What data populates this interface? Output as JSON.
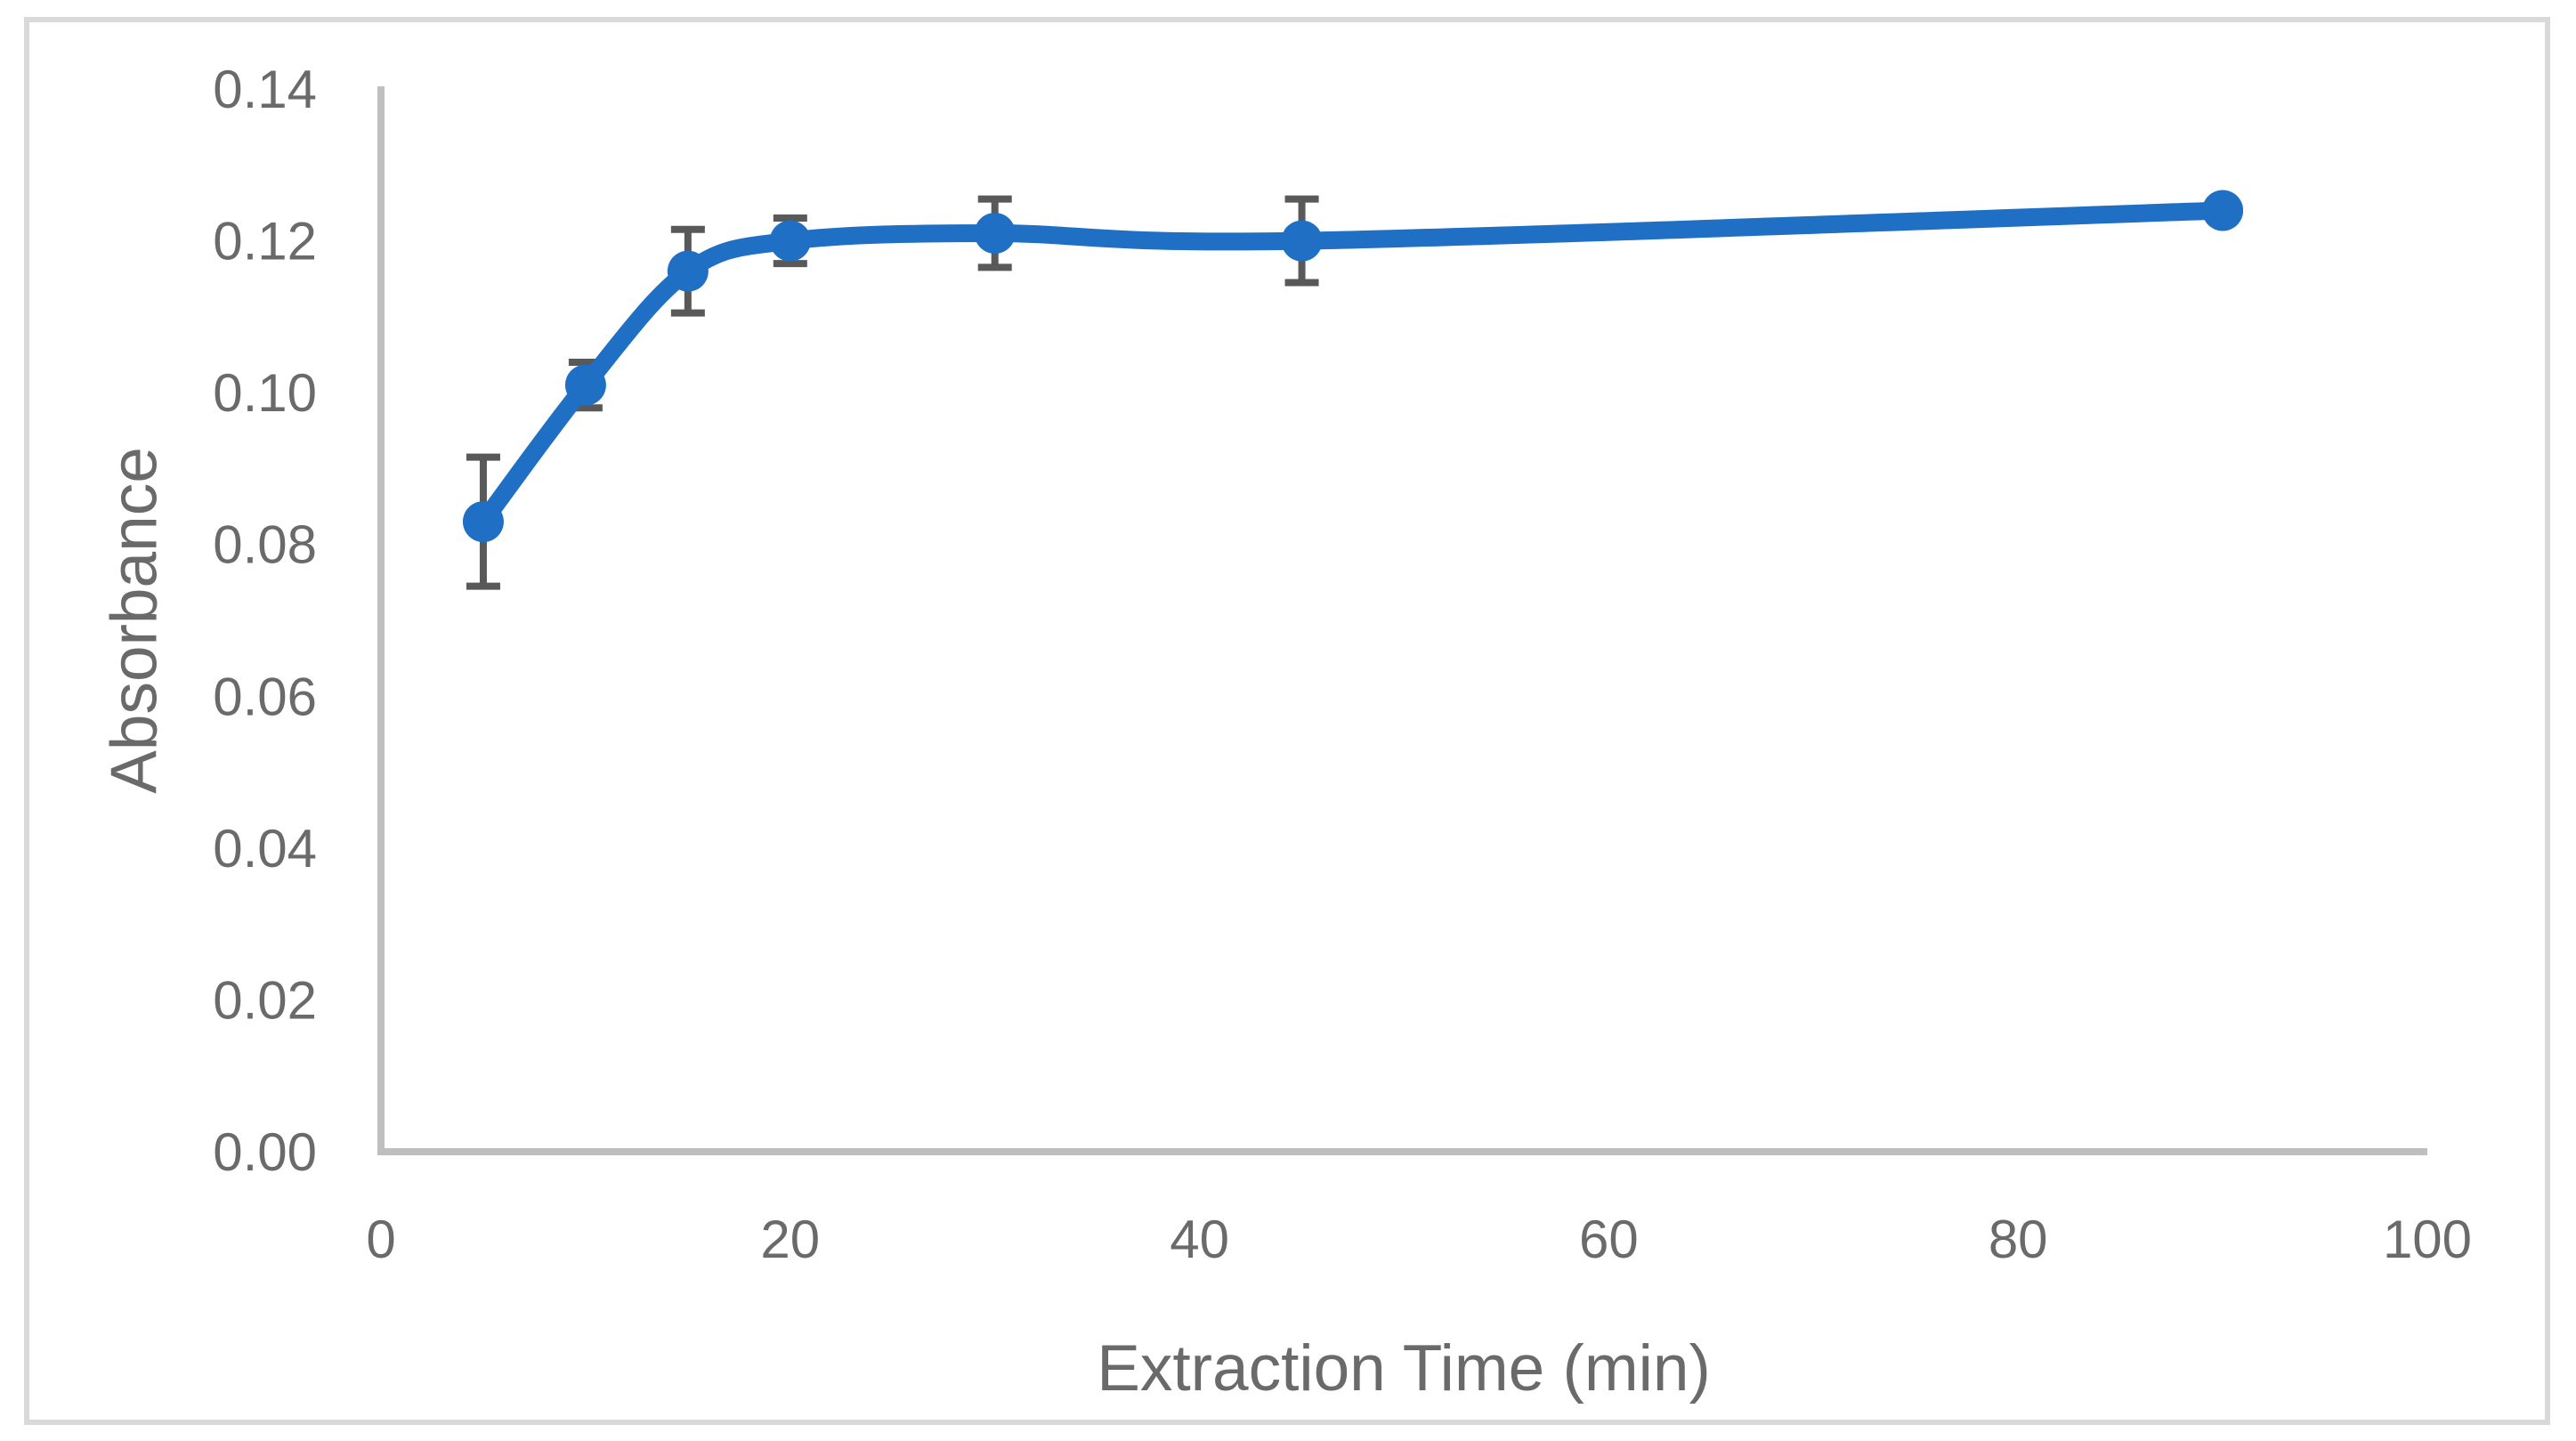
{
  "chart_data": {
    "type": "line",
    "title": "",
    "xlabel": "Extraction Time (min)",
    "ylabel": "Absorbance",
    "x": [
      5,
      10,
      15,
      20,
      30,
      45,
      90
    ],
    "y": [
      0.083,
      0.101,
      0.116,
      0.12,
      0.121,
      0.12,
      0.124
    ],
    "yerr": [
      0.0085,
      0.003,
      0.0055,
      0.003,
      0.0045,
      0.0055,
      0
    ],
    "xlim": [
      0,
      100
    ],
    "ylim": [
      0,
      0.14
    ],
    "xticks": [
      0,
      20,
      40,
      60,
      80,
      100
    ],
    "yticks": [
      0,
      0.02,
      0.04,
      0.06,
      0.08,
      0.1,
      0.12,
      0.14
    ],
    "ytick_decimals": 2,
    "grid": false,
    "legend": "none",
    "smooth": true,
    "marker": "circle",
    "colors": {
      "series": "#1F6FC4",
      "error_bar": "#595959",
      "axis_line": "#BFBFBF",
      "tick_label": "#6A6A6A",
      "axis_title": "#6A6A6A",
      "figure_border": "#D9D9D9",
      "background": "#FFFFFF"
    }
  }
}
